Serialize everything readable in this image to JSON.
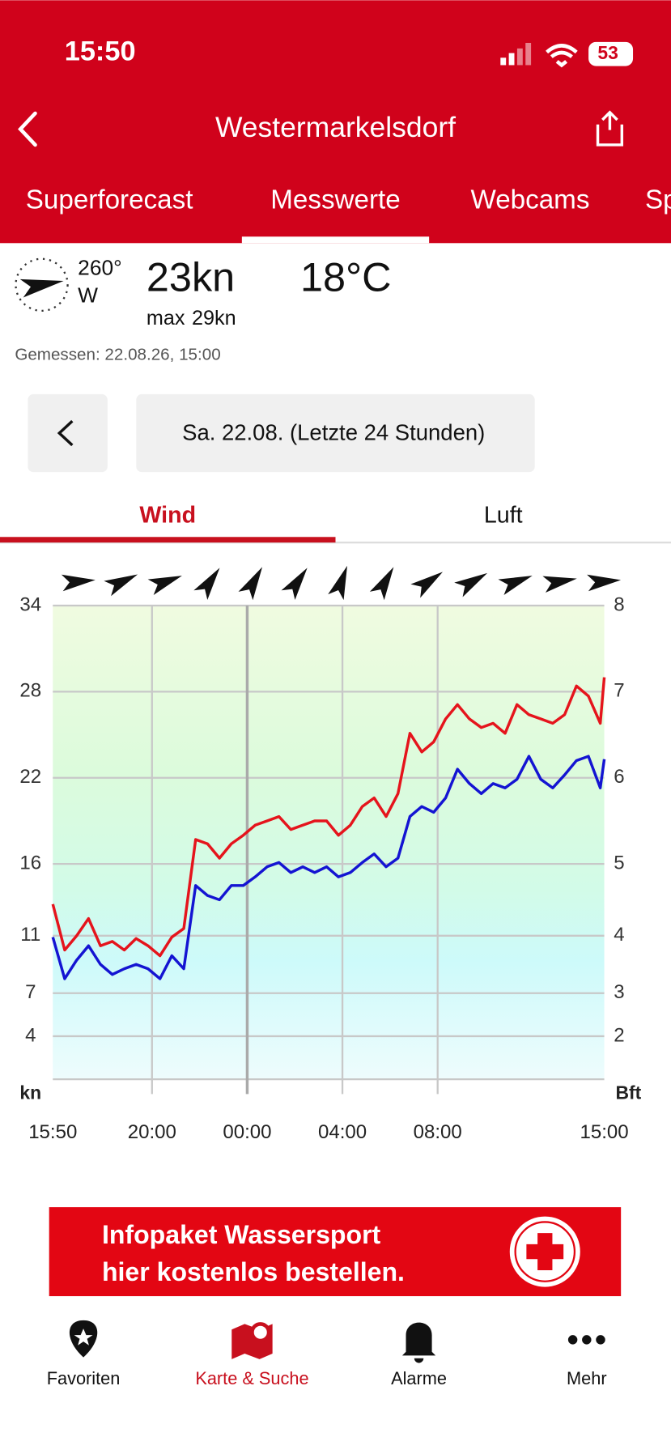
{
  "status": {
    "time": "15:50",
    "battery": "53"
  },
  "header": {
    "title": "Westermarkelsdorf"
  },
  "tabs": [
    "Superforecast",
    "Messwerte",
    "Webcams",
    "Sp"
  ],
  "current": {
    "direction": "260°",
    "direction_name": "W",
    "speed": "23kn",
    "max_label": "max",
    "max_value": "29kn",
    "temperature": "18°C",
    "measured": "Gemessen: 22.08.26, 15:00"
  },
  "date_selector": {
    "label": "Sa. 22.08. (Letzte 24 Stunden)"
  },
  "chart_tabs": [
    "Wind",
    "Luft"
  ],
  "chart_data": {
    "type": "line",
    "y_unit": "kn",
    "y2_unit": "Bft",
    "x": [
      "15:50",
      "16:20",
      "16:50",
      "17:20",
      "17:50",
      "18:20",
      "18:50",
      "19:20",
      "19:50",
      "20:20",
      "20:50",
      "21:20",
      "21:50",
      "22:20",
      "22:50",
      "23:20",
      "23:50",
      "00:20",
      "00:50",
      "01:20",
      "01:50",
      "02:20",
      "02:50",
      "03:20",
      "03:50",
      "04:20",
      "04:50",
      "05:20",
      "05:50",
      "06:20",
      "06:50",
      "07:20",
      "07:50",
      "08:20",
      "08:50",
      "09:20",
      "09:50",
      "10:20",
      "10:50",
      "11:20",
      "11:50",
      "12:20",
      "12:50",
      "13:20",
      "13:50",
      "14:20",
      "14:50",
      "15:00"
    ],
    "xticks": [
      "15:50",
      "20:00",
      "00:00",
      "04:00",
      "08:00",
      "15:00"
    ],
    "ylim": [
      1,
      34
    ],
    "yticks": [
      34,
      28,
      22,
      16,
      11,
      7,
      4
    ],
    "y2ticks": [
      8,
      7,
      6,
      5,
      4,
      3,
      2
    ],
    "directions": [
      265,
      245,
      250,
      215,
      210,
      215,
      200,
      210,
      235,
      240,
      250,
      260,
      265
    ],
    "series": [
      {
        "color": "#e5141c",
        "values": [
          13.2,
          10,
          11,
          12.2,
          10.3,
          10.6,
          10,
          10.8,
          10.3,
          9.6,
          10.9,
          11.5,
          17.7,
          17.4,
          16.4,
          17.4,
          18,
          18.7,
          19,
          19.3,
          18.4,
          18.7,
          19,
          19,
          18,
          18.7,
          20,
          20.6,
          19.3,
          20.9,
          25.1,
          23.8,
          24.5,
          26.1,
          27.1,
          26.1,
          25.5,
          25.8,
          25.1,
          27.1,
          26.4,
          26.1,
          25.8,
          26.4,
          28.4,
          27.7,
          25.8,
          29
        ]
      },
      {
        "color": "#1414d2",
        "values": [
          10.9,
          8,
          9.3,
          10.3,
          9,
          8.3,
          8.7,
          9,
          8.7,
          8,
          9.6,
          8.7,
          14.5,
          13.8,
          13.5,
          14.5,
          14.5,
          15.1,
          15.8,
          16.1,
          15.4,
          15.8,
          15.4,
          15.8,
          15.1,
          15.4,
          16.1,
          16.7,
          15.8,
          16.4,
          19.3,
          20,
          19.6,
          20.6,
          22.6,
          21.6,
          20.9,
          21.6,
          21.3,
          21.9,
          23.5,
          21.9,
          21.3,
          22.2,
          23.2,
          23.5,
          21.3,
          23.3
        ]
      }
    ]
  },
  "banner": {
    "lines": [
      "Infopaket Wassersport",
      "hier kostenlos bestellen."
    ]
  },
  "nav": [
    "Favoriten",
    "Karte & Suche",
    "Alarme",
    "Mehr"
  ]
}
